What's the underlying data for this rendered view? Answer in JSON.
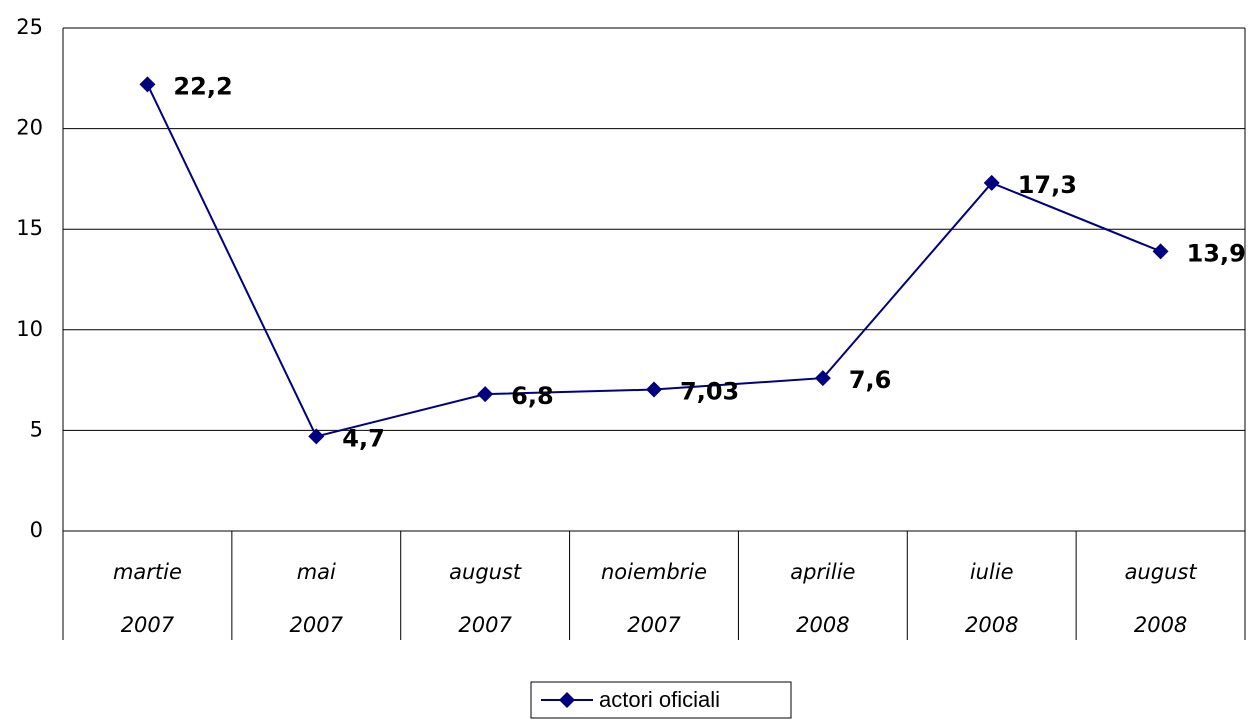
{
  "chart_data": {
    "type": "line",
    "categories": [
      "martie 2007",
      "mai 2007",
      "august 2007",
      "noiembrie 2007",
      "aprilie 2008",
      "iulie 2008",
      "august 2008"
    ],
    "series": [
      {
        "name": "actori oficiali",
        "color": "#000080",
        "values": [
          22.2,
          4.7,
          6.8,
          7.03,
          7.6,
          17.3,
          13.9
        ],
        "value_labels": [
          "22,2",
          "4,7",
          "6,8",
          "7,03",
          "7,6",
          "17,3",
          "13,9"
        ]
      }
    ],
    "ylim": [
      0,
      25
    ],
    "yticks": [
      0,
      5,
      10,
      15,
      20,
      25
    ],
    "grid": true,
    "legend": "bottom"
  }
}
